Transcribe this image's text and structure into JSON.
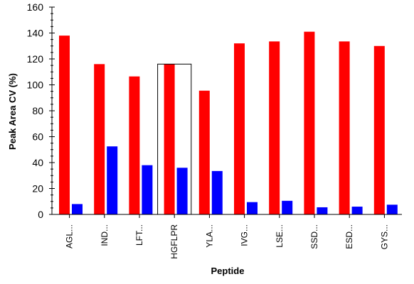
{
  "chart_data": {
    "type": "bar",
    "title": "",
    "xlabel": "Peptide",
    "ylabel": "Peak Area CV (%)",
    "ylim": [
      0,
      160
    ],
    "yticks": [
      0,
      20,
      40,
      60,
      80,
      100,
      120,
      140,
      160
    ],
    "grid": false,
    "categories": [
      "AGL...",
      "IND...",
      "LFT...",
      "HGFLPR",
      "YLA...",
      "IVG...",
      "LSE...",
      "SSD...",
      "ESD...",
      "GYS..."
    ],
    "selected_category": "HGFLPR",
    "series": [
      {
        "color": "#ff0000",
        "values": [
          138,
          116,
          106.5,
          116,
          95.5,
          132,
          133.5,
          141,
          133.5,
          130
        ]
      },
      {
        "color": "#0000ff",
        "values": [
          8,
          52.5,
          38,
          36,
          33.5,
          9.5,
          10.5,
          5.5,
          6,
          7.5
        ]
      }
    ]
  }
}
